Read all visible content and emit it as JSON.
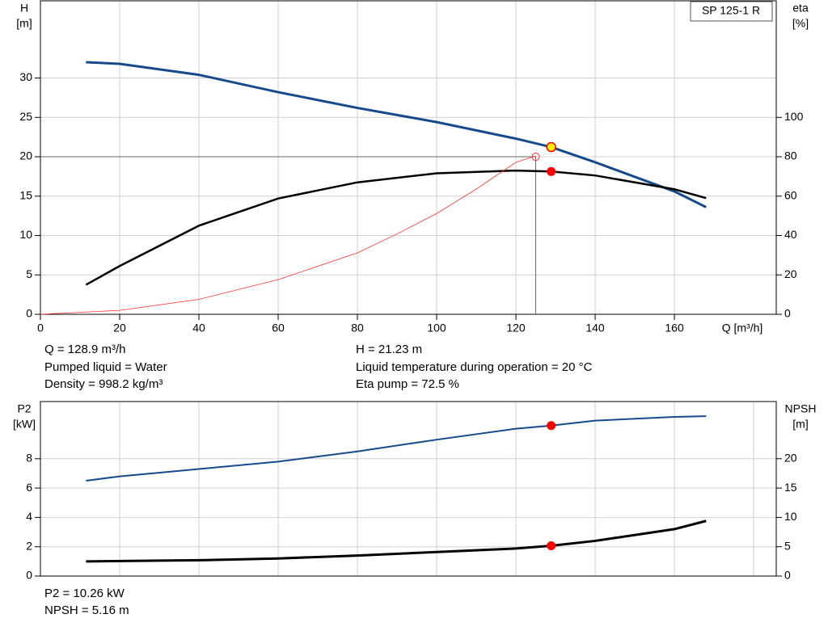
{
  "chart_data": [
    {
      "type": "line",
      "label": "SP 125-1 R",
      "xlabel": "Q [m³/h]",
      "ylabel": "H",
      "yunit": "[m]",
      "y2label": "eta",
      "y2unit": "[%]",
      "xlim": [
        0,
        185.7
      ],
      "xticks": [
        0,
        20,
        40,
        60,
        80,
        100,
        120,
        140,
        160
      ],
      "ylim": [
        0,
        39.8
      ],
      "yticks": [
        0,
        5,
        10,
        15,
        20,
        25,
        30
      ],
      "y2lim": [
        0,
        159.2
      ],
      "y2ticks": [
        0,
        20,
        40,
        60,
        80,
        100
      ],
      "grid": true,
      "series": [
        {
          "name": "H",
          "color": "#174a8a",
          "width": 3,
          "x": [
            11.5,
            20,
            40,
            60,
            80,
            100,
            120,
            128.9,
            140,
            160,
            168
          ],
          "values": [
            32,
            31.8,
            30.4,
            28.2,
            26.2,
            24.4,
            22.3,
            21.23,
            19.3,
            15.6,
            13.6
          ]
        },
        {
          "name": "eta",
          "axis": "y2",
          "color": "#000000",
          "width": 2.5,
          "x": [
            11.5,
            20,
            40,
            60,
            80,
            100,
            120,
            128.9,
            140,
            160,
            168
          ],
          "values": [
            15,
            24.5,
            45,
            58.8,
            67,
            71.6,
            73,
            72.5,
            70.5,
            63.5,
            59
          ]
        },
        {
          "color": "#ff3030",
          "width": 0.8,
          "x": [
            0,
            20,
            40,
            60,
            80,
            90,
            100,
            110,
            120,
            125
          ],
          "values": [
            0,
            0.5,
            1.9,
            4.4,
            7.8,
            10.2,
            12.8,
            15.9,
            19.3,
            20.1
          ]
        }
      ],
      "crosshair": {
        "x": 125,
        "y": 20
      },
      "markers": [
        {
          "x": 128.9,
          "y": 21.23,
          "color": "#ffee00"
        },
        {
          "x": 128.9,
          "y": 72.5,
          "axis": "y2",
          "color": "#ff0000"
        }
      ],
      "annotations": [
        "Q = 128.9 m³/h",
        "Pumped liquid = Water",
        "Density = 998.2 kg/m³",
        "H = 21.23 m",
        "Liquid temperature during operation = 20 °C",
        "Eta pump = 72.5 %"
      ]
    },
    {
      "type": "line",
      "ylabel": "P2",
      "yunit": "[kW]",
      "y2label": "NPSH",
      "y2unit": "[m]",
      "xlim": [
        0,
        185.7
      ],
      "xticks": [
        0,
        20,
        40,
        60,
        80,
        100,
        120,
        140,
        160,
        180
      ],
      "ylim": [
        0,
        11.9
      ],
      "yticks": [
        0,
        2,
        4,
        6,
        8
      ],
      "y2lim": [
        0,
        29.75
      ],
      "y2ticks": [
        0,
        5,
        10,
        15,
        20
      ],
      "grid": true,
      "series": [
        {
          "name": "P2",
          "color": "#174a8a",
          "width": 2,
          "x": [
            11.5,
            20,
            40,
            60,
            80,
            100,
            120,
            128.9,
            140,
            160,
            168
          ],
          "values": [
            6.5,
            6.8,
            7.3,
            7.8,
            8.5,
            9.3,
            10.05,
            10.26,
            10.6,
            10.85,
            10.9
          ]
        },
        {
          "name": "NPSH",
          "axis": "y2",
          "color": "#000000",
          "width": 3,
          "x": [
            11.5,
            40,
            60,
            80,
            100,
            120,
            128.9,
            140,
            160,
            168
          ],
          "values": [
            2.5,
            2.7,
            3,
            3.5,
            4.1,
            4.7,
            5.16,
            6,
            8,
            9.4
          ]
        }
      ],
      "markers": [
        {
          "x": 128.9,
          "y": 10.26,
          "color": "#ff0000"
        },
        {
          "x": 128.9,
          "y": 5.16,
          "axis": "y2",
          "color": "#ff0000"
        }
      ],
      "annotations": [
        "P2 = 10.26 kW",
        "NPSH = 5.16 m"
      ]
    }
  ]
}
